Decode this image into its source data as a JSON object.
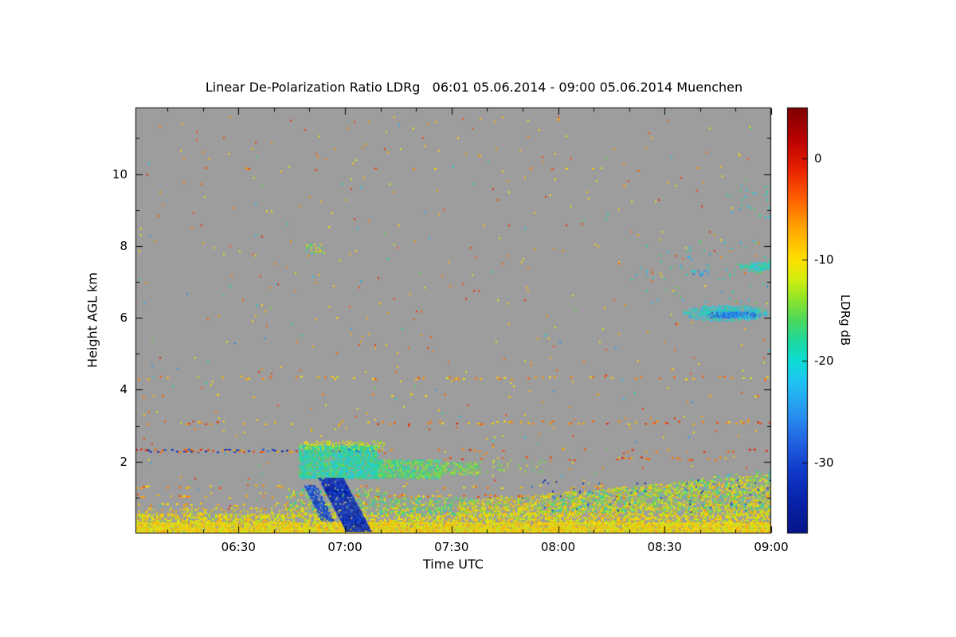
{
  "chart_data": {
    "type": "heatmap",
    "title": "Linear De-Polarization Ratio LDRg   06:01 05.06.2014 - 09:00 05.06.2014 Muenchen",
    "xlabel": "Time UTC",
    "ylabel": "Height AGL km",
    "x_range": {
      "start_label": "06:01",
      "end_label": "09:00",
      "start_minutes": 361,
      "end_minutes": 540
    },
    "y_range_km": [
      0,
      11.85
    ],
    "x_ticks": [
      {
        "label": "06:30",
        "minutes": 390
      },
      {
        "label": "07:00",
        "minutes": 420
      },
      {
        "label": "07:30",
        "minutes": 450
      },
      {
        "label": "08:00",
        "minutes": 480
      },
      {
        "label": "08:30",
        "minutes": 510
      },
      {
        "label": "09:00",
        "minutes": 540
      }
    ],
    "x_minor_step_minutes": 10,
    "y_ticks": [
      2,
      4,
      6,
      8,
      10
    ],
    "background_color": "#9d9d9d",
    "frame_color": "#000000",
    "colorbar": {
      "label": "LDRg dB",
      "ticks": [
        0,
        -10,
        -20,
        -30
      ],
      "value_range": [
        5,
        -37
      ],
      "stops": [
        [
          5,
          "#800000"
        ],
        [
          2,
          "#b80000"
        ],
        [
          -1,
          "#e82000"
        ],
        [
          -4,
          "#ff6000"
        ],
        [
          -7,
          "#ffa800"
        ],
        [
          -10,
          "#ffe000"
        ],
        [
          -12,
          "#d0ee10"
        ],
        [
          -14,
          "#8ce42c"
        ],
        [
          -16,
          "#4cd85c"
        ],
        [
          -18,
          "#1ed89e"
        ],
        [
          -20,
          "#0edcd4"
        ],
        [
          -22,
          "#1ec4f2"
        ],
        [
          -25,
          "#2896f0"
        ],
        [
          -28,
          "#2062e2"
        ],
        [
          -31,
          "#1038c8"
        ],
        [
          -34,
          "#0822a8"
        ],
        [
          -37,
          "#061488"
        ]
      ]
    },
    "features": [
      {
        "name": "background-speckle-warm",
        "kind": "scatter",
        "t": [
          361,
          540
        ],
        "h": [
          0.6,
          11.6
        ],
        "density": 0.005,
        "v": [
          -12,
          -1
        ],
        "seed": 71
      },
      {
        "name": "background-speckle-cool",
        "kind": "scatter",
        "t": [
          361,
          540
        ],
        "h": [
          0.6,
          11.6
        ],
        "density": 0.0012,
        "v": [
          -26,
          -15
        ],
        "seed": 72
      },
      {
        "name": "aerosol-line-10km",
        "kind": "hline",
        "h": 10.15,
        "t": [
          361,
          540
        ],
        "density": 0.05,
        "v": [
          -10,
          -2
        ],
        "seed": 61
      },
      {
        "name": "aerosol-line-4.35km",
        "kind": "hline",
        "h": 4.35,
        "t": [
          361,
          540
        ],
        "density": 0.22,
        "v": [
          -12,
          -3
        ],
        "seed": 51
      },
      {
        "name": "aerosol-line-3.85km",
        "kind": "hline",
        "h": 3.85,
        "t": [
          361,
          540
        ],
        "density": 0.1,
        "v": [
          -11,
          -4
        ],
        "seed": 52
      },
      {
        "name": "aerosol-line-3.1km",
        "kind": "hline",
        "h": 3.1,
        "t": [
          361,
          540
        ],
        "density": 0.27,
        "v": [
          -10,
          -1
        ],
        "seed": 53
      },
      {
        "name": "layer-2.3km-blue",
        "kind": "hline",
        "h": 2.32,
        "t": [
          361,
          428
        ],
        "density": 0.5,
        "v": [
          -35,
          -27
        ],
        "seed": 54
      },
      {
        "name": "layer-2.3km-red",
        "kind": "hline",
        "h": 2.32,
        "t": [
          361,
          428
        ],
        "density": 0.28,
        "v": [
          -8,
          -1
        ],
        "seed": 55
      },
      {
        "name": "layer-2.3km-right",
        "kind": "hline",
        "h": 2.32,
        "t": [
          428,
          540
        ],
        "density": 0.13,
        "v": [
          -7,
          -1
        ],
        "seed": 56
      },
      {
        "name": "layer-2.1km",
        "kind": "hline",
        "h": 2.1,
        "t": [
          448,
          532
        ],
        "density": 0.14,
        "v": [
          -6,
          -1
        ],
        "seed": 57
      },
      {
        "name": "aerosol-line-1.3km",
        "kind": "hline",
        "h": 1.32,
        "t": [
          361,
          540
        ],
        "density": 0.17,
        "v": [
          -11,
          -3
        ],
        "seed": 58
      },
      {
        "name": "aerosol-line-1.05km",
        "kind": "hline",
        "h": 1.05,
        "t": [
          361,
          540
        ],
        "density": 0.3,
        "v": [
          -10,
          -2
        ],
        "seed": 59
      },
      {
        "name": "aerosol-line-0.8km",
        "kind": "hline",
        "h": 0.82,
        "t": [
          361,
          540
        ],
        "density": 0.28,
        "v": [
          -12,
          -5
        ],
        "seed": 60
      },
      {
        "name": "surface-layer-base",
        "kind": "band",
        "t": [
          361,
          540
        ],
        "h": [
          0.02,
          0.3
        ],
        "density": 0.92,
        "v": [
          -13,
          -7
        ],
        "seed": 11
      },
      {
        "name": "surface-layer-upper",
        "kind": "band",
        "t": [
          361,
          540
        ],
        "h": [
          0.3,
          0.55
        ],
        "density": 0.55,
        "v": [
          -14,
          -7
        ],
        "seed": 12
      },
      {
        "name": "surface-layer-fringe",
        "kind": "band",
        "t": [
          361,
          540
        ],
        "h": [
          0.55,
          0.72
        ],
        "density": 0.22,
        "v": [
          -13,
          -6
        ],
        "seed": 13
      },
      {
        "name": "subcloud-drizzle",
        "kind": "band",
        "t": [
          404,
          432
        ],
        "h": [
          0.55,
          1.25
        ],
        "density": 0.22,
        "v": [
          -19,
          -10
        ],
        "seed": 18
      },
      {
        "name": "midmorning-mixing",
        "kind": "band",
        "t": [
          430,
          456
        ],
        "h": [
          0.55,
          1.0
        ],
        "density": 0.28,
        "v": [
          -20,
          -12
        ],
        "seed": 17
      },
      {
        "name": "boundary-layer-growth",
        "kind": "wedge",
        "t": [
          452,
          540
        ],
        "h_base": 0.55,
        "h_top": [
          0.9,
          1.65
        ],
        "density": 0.4,
        "v": [
          -16,
          -7
        ],
        "seed": 14
      },
      {
        "name": "boundary-layer-cool-flecks",
        "kind": "wedge",
        "t": [
          478,
          540
        ],
        "h_base": 0.6,
        "h_top": [
          1.0,
          1.8
        ],
        "density": 0.18,
        "v": [
          -22,
          -10
        ],
        "seed": 15
      },
      {
        "name": "boundary-layer-blue-dots",
        "kind": "scatter",
        "t": [
          468,
          540
        ],
        "h": [
          0.6,
          1.5
        ],
        "density": 0.02,
        "v": [
          -34,
          -26
        ],
        "seed": 16
      },
      {
        "name": "liquid-cloud-main",
        "kind": "band",
        "t": [
          407,
          429
        ],
        "h": [
          1.55,
          2.45
        ],
        "density": 0.85,
        "v": [
          -22,
          -15
        ],
        "seed": 21
      },
      {
        "name": "liquid-cloud-mid",
        "kind": "band",
        "t": [
          429,
          447
        ],
        "h": [
          1.55,
          2.05
        ],
        "density": 0.72,
        "v": [
          -20,
          -13
        ],
        "seed": 22
      },
      {
        "name": "liquid-cloud-tail",
        "kind": "band",
        "t": [
          447,
          458
        ],
        "h": [
          1.65,
          1.98
        ],
        "density": 0.42,
        "v": [
          -18,
          -12
        ],
        "seed": 23
      },
      {
        "name": "liquid-cloud-wisps",
        "kind": "scatter",
        "t": [
          458,
          476
        ],
        "h": [
          1.7,
          2.05
        ],
        "density": 0.13,
        "v": [
          -17,
          -11
        ],
        "seed": 24
      },
      {
        "name": "liquid-cloud-top-fringe",
        "kind": "scatter",
        "t": [
          407,
          431
        ],
        "h": [
          2.35,
          2.58
        ],
        "density": 0.3,
        "v": [
          -15,
          -9
        ],
        "seed": 25
      },
      {
        "name": "virga-secondary",
        "kind": "diag",
        "t": [
          408.5,
          412
        ],
        "dt": 5,
        "h_top": 1.35,
        "h_bottom": 0.35,
        "density": 0.8,
        "v": [
          -33,
          -27
        ],
        "seed": 32
      },
      {
        "name": "virga-main",
        "kind": "diag",
        "t": [
          412.5,
          419.5
        ],
        "dt": 8,
        "h_top": 1.55,
        "h_bottom": 0.05,
        "density": 0.95,
        "v": [
          -36,
          -29
        ],
        "seed": 31
      },
      {
        "name": "midlevel-dots-8km",
        "kind": "scatter",
        "t": [
          409,
          415
        ],
        "h": [
          7.8,
          8.05
        ],
        "density": 0.35,
        "v": [
          -20,
          -8
        ],
        "seed": 47
      },
      {
        "name": "cirrus-band-main",
        "kind": "blob",
        "tc": 527,
        "hc": 6.15,
        "rt": 12,
        "rh": 0.24,
        "density": 0.85,
        "v": [
          -24,
          -17
        ],
        "seed": 41
      },
      {
        "name": "cirrus-band-core",
        "kind": "blob",
        "tc": 529,
        "hc": 6.1,
        "rt": 8,
        "rh": 0.11,
        "density": 0.9,
        "v": [
          -30,
          -24
        ],
        "seed": 42
      },
      {
        "name": "cirrus-patch-upper",
        "kind": "blob",
        "tc": 536,
        "hc": 7.45,
        "rt": 6,
        "rh": 0.14,
        "density": 0.8,
        "v": [
          -22,
          -16
        ],
        "seed": 43
      },
      {
        "name": "cirrus-patch-left",
        "kind": "blob",
        "tc": 520,
        "hc": 7.28,
        "rt": 3,
        "rh": 0.09,
        "density": 0.6,
        "v": [
          -27,
          -18
        ],
        "seed": 44
      },
      {
        "name": "cirrus-scatter",
        "kind": "scatter",
        "t": [
          503,
          540
        ],
        "h": [
          6.4,
          8.2
        ],
        "density": 0.018,
        "v": [
          -24,
          -15
        ],
        "seed": 45
      },
      {
        "name": "cirrus-scatter-high",
        "kind": "scatter",
        "t": [
          527,
          540
        ],
        "h": [
          8.8,
          9.7
        ],
        "density": 0.04,
        "v": [
          -23,
          -16
        ],
        "seed": 46
      }
    ]
  }
}
